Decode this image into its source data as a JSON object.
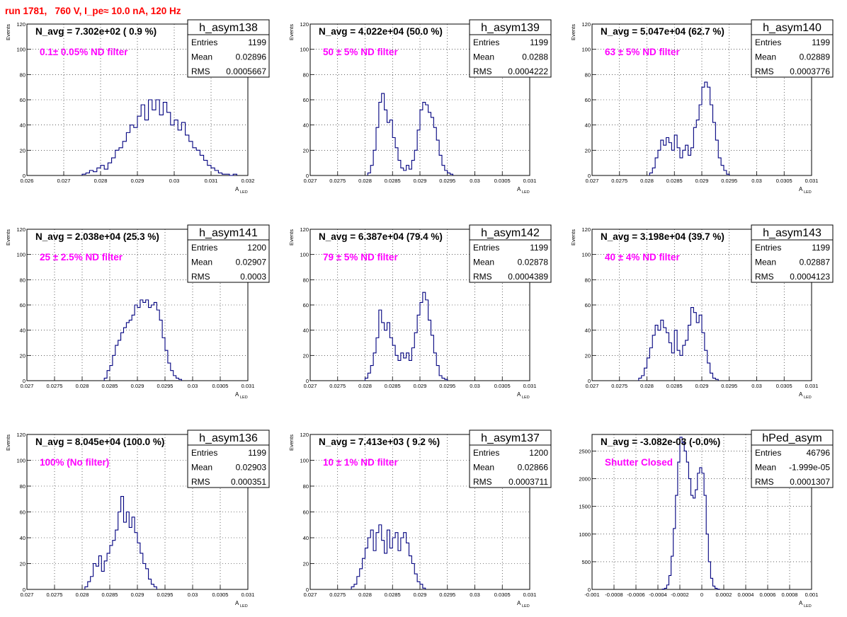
{
  "page": {
    "title": "run 1781,   760 V, I_pe≈ 10.0 nA, 120 Hz"
  },
  "labels": {
    "stats_entries": "Entries",
    "stats_mean": "Mean",
    "stats_rms": "RMS"
  },
  "colors": {
    "histogram": "#00007f",
    "annotation": "#ff00ff",
    "title": "#ff0000",
    "grid": "#000000"
  },
  "chart_data": [
    {
      "type": "histogram",
      "name": "h_asym138",
      "navg_text": "N_avg = 7.302e+02 ( 0.9 %)",
      "filter_text": "0.1± 0.05% ND filter",
      "stats": {
        "entries": "1199",
        "mean": "0.02896",
        "rms": "0.0005667"
      },
      "xlabel": "A",
      "xlabel_sub": "LED",
      "ylabel": "Events",
      "xlim": [
        0.026,
        0.032
      ],
      "ylim": [
        0,
        120
      ],
      "grid": true,
      "xticks": [
        0.026,
        0.027,
        0.028,
        0.029,
        0.03,
        0.031,
        0.032
      ],
      "xtick_labels": [
        "0.026",
        "0.027",
        "0.028",
        "0.029",
        "0.03",
        "0.031",
        "0.032"
      ],
      "yticks": [
        0,
        20,
        40,
        60,
        80,
        100,
        120
      ],
      "ytick_labels": [
        "0",
        "20",
        "40",
        "60",
        "80",
        "100",
        "120"
      ],
      "bins": {
        "start": 0.0275,
        "width": 0.0001,
        "counts": [
          1,
          2,
          4,
          3,
          6,
          8,
          5,
          10,
          14,
          20,
          22,
          27,
          34,
          40,
          38,
          47,
          56,
          44,
          60,
          52,
          60,
          48,
          58,
          50,
          40,
          44,
          36,
          42,
          32,
          27,
          22,
          20,
          16,
          12,
          8,
          6,
          4,
          2,
          1,
          1,
          0,
          1
        ]
      }
    },
    {
      "type": "histogram",
      "name": "h_asym139",
      "navg_text": "N_avg = 4.022e+04 (50.0 %)",
      "filter_text": "50 ± 5% ND filter",
      "stats": {
        "entries": "1199",
        "mean": "0.0288",
        "rms": "0.0004222"
      },
      "xlabel": "A",
      "xlabel_sub": "LED",
      "ylabel": "Events",
      "xlim": [
        0.027,
        0.031
      ],
      "ylim": [
        0,
        120
      ],
      "grid": true,
      "xticks": [
        0.027,
        0.0275,
        0.028,
        0.0285,
        0.029,
        0.0295,
        0.03,
        0.0305,
        0.031
      ],
      "xtick_labels": [
        "0.027",
        "0.0275",
        "0.028",
        "0.0285",
        "0.029",
        "0.0295",
        "0.03",
        "0.0305",
        "0.031"
      ],
      "yticks": [
        0,
        20,
        40,
        60,
        80,
        100,
        120
      ],
      "ytick_labels": [
        "0",
        "20",
        "40",
        "60",
        "80",
        "100",
        "120"
      ],
      "bins": {
        "start": 0.02805,
        "width": 5e-05,
        "counts": [
          2,
          8,
          20,
          38,
          58,
          65,
          52,
          42,
          44,
          30,
          22,
          12,
          6,
          4,
          8,
          5,
          12,
          20,
          36,
          52,
          58,
          56,
          50,
          46,
          38,
          28,
          16,
          8,
          4,
          2,
          1
        ]
      }
    },
    {
      "type": "histogram",
      "name": "h_asym140",
      "navg_text": "N_avg = 5.047e+04 (62.7 %)",
      "filter_text": "63 ± 5% ND filter",
      "stats": {
        "entries": "1199",
        "mean": "0.02889",
        "rms": "0.0003776"
      },
      "xlabel": "A",
      "xlabel_sub": "LED",
      "ylabel": "Events",
      "xlim": [
        0.027,
        0.031
      ],
      "ylim": [
        0,
        120
      ],
      "grid": true,
      "xticks": [
        0.027,
        0.0275,
        0.028,
        0.0285,
        0.029,
        0.0295,
        0.03,
        0.0305,
        0.031
      ],
      "xtick_labels": [
        "0.027",
        "0.0275",
        "0.028",
        "0.0285",
        "0.029",
        "0.0295",
        "0.03",
        "0.0305",
        "0.031"
      ],
      "yticks": [
        0,
        20,
        40,
        60,
        80,
        100,
        120
      ],
      "ytick_labels": [
        "0",
        "20",
        "40",
        "60",
        "80",
        "100",
        "120"
      ],
      "bins": {
        "start": 0.02805,
        "width": 5e-05,
        "counts": [
          2,
          6,
          14,
          20,
          28,
          24,
          30,
          26,
          20,
          32,
          22,
          14,
          20,
          24,
          16,
          22,
          38,
          44,
          56,
          70,
          74,
          70,
          56,
          42,
          28,
          14,
          8,
          4,
          1
        ]
      }
    },
    {
      "type": "histogram",
      "name": "h_asym141",
      "navg_text": "N_avg = 2.038e+04 (25.3 %)",
      "filter_text": "25 ± 2.5% ND filter",
      "stats": {
        "entries": "1200",
        "mean": "0.02907",
        "rms": "0.0003"
      },
      "xlabel": "A",
      "xlabel_sub": "LED",
      "ylabel": "Events",
      "xlim": [
        0.027,
        0.031
      ],
      "ylim": [
        0,
        120
      ],
      "grid": true,
      "xticks": [
        0.027,
        0.0275,
        0.028,
        0.0285,
        0.029,
        0.0295,
        0.03,
        0.0305,
        0.031
      ],
      "xtick_labels": [
        "0.027",
        "0.0275",
        "0.028",
        "0.0285",
        "0.029",
        "0.0295",
        "0.03",
        "0.0305",
        "0.031"
      ],
      "yticks": [
        0,
        20,
        40,
        60,
        80,
        100,
        120
      ],
      "ytick_labels": [
        "0",
        "20",
        "40",
        "60",
        "80",
        "100",
        "120"
      ],
      "bins": {
        "start": 0.0284,
        "width": 5e-05,
        "counts": [
          2,
          8,
          12,
          20,
          28,
          32,
          38,
          42,
          46,
          48,
          52,
          60,
          58,
          64,
          62,
          64,
          58,
          60,
          62,
          56,
          48,
          34,
          24,
          14,
          8,
          4,
          2,
          1
        ]
      }
    },
    {
      "type": "histogram",
      "name": "h_asym142",
      "navg_text": "N_avg = 6.387e+04 (79.4 %)",
      "filter_text": "79 ± 5% ND filter",
      "stats": {
        "entries": "1199",
        "mean": "0.02878",
        "rms": "0.0004389"
      },
      "xlabel": "A",
      "xlabel_sub": "LED",
      "ylabel": "Events",
      "xlim": [
        0.027,
        0.031
      ],
      "ylim": [
        0,
        120
      ],
      "grid": true,
      "xticks": [
        0.027,
        0.0275,
        0.028,
        0.0285,
        0.029,
        0.0295,
        0.03,
        0.0305,
        0.031
      ],
      "xtick_labels": [
        "0.027",
        "0.0275",
        "0.028",
        "0.0285",
        "0.029",
        "0.0295",
        "0.03",
        "0.0305",
        "0.031"
      ],
      "yticks": [
        0,
        20,
        40,
        60,
        80,
        100,
        120
      ],
      "ytick_labels": [
        "0",
        "20",
        "40",
        "60",
        "80",
        "100",
        "120"
      ],
      "bins": {
        "start": 0.028,
        "width": 5e-05,
        "counts": [
          2,
          6,
          12,
          22,
          34,
          56,
          46,
          40,
          46,
          34,
          28,
          20,
          16,
          22,
          18,
          22,
          16,
          26,
          38,
          52,
          62,
          70,
          64,
          48,
          36,
          22,
          12,
          4,
          2,
          1
        ]
      }
    },
    {
      "type": "histogram",
      "name": "h_asym143",
      "navg_text": "N_avg = 3.198e+04 (39.7 %)",
      "filter_text": "40 ± 4% ND filter",
      "stats": {
        "entries": "1199",
        "mean": "0.02887",
        "rms": "0.0004123"
      },
      "xlabel": "A",
      "xlabel_sub": "LED",
      "ylabel": "Events",
      "xlim": [
        0.027,
        0.031
      ],
      "ylim": [
        0,
        120
      ],
      "grid": true,
      "xticks": [
        0.027,
        0.0275,
        0.028,
        0.0285,
        0.029,
        0.0295,
        0.03,
        0.0305,
        0.031
      ],
      "xtick_labels": [
        "0.027",
        "0.0275",
        "0.028",
        "0.0285",
        "0.029",
        "0.0295",
        "0.03",
        "0.0305",
        "0.031"
      ],
      "yticks": [
        0,
        20,
        40,
        60,
        80,
        100,
        120
      ],
      "ytick_labels": [
        "0",
        "20",
        "40",
        "60",
        "80",
        "100",
        "120"
      ],
      "bins": {
        "start": 0.02785,
        "width": 5e-05,
        "counts": [
          2,
          4,
          10,
          18,
          26,
          36,
          44,
          40,
          48,
          42,
          38,
          30,
          22,
          40,
          24,
          20,
          28,
          32,
          44,
          58,
          54,
          46,
          52,
          38,
          24,
          14,
          6,
          2,
          1
        ]
      }
    },
    {
      "type": "histogram",
      "name": "h_asym136",
      "navg_text": "N_avg = 8.045e+04 (100.0 %)",
      "filter_text": "100% (No filter)",
      "stats": {
        "entries": "1199",
        "mean": "0.02903",
        "rms": "0.000351"
      },
      "xlabel": "A",
      "xlabel_sub": "LED",
      "ylabel": "Events",
      "xlim": [
        0.027,
        0.031
      ],
      "ylim": [
        0,
        120
      ],
      "grid": true,
      "xticks": [
        0.027,
        0.0275,
        0.028,
        0.0285,
        0.029,
        0.0295,
        0.03,
        0.0305,
        0.031
      ],
      "xtick_labels": [
        "0.027",
        "0.0275",
        "0.028",
        "0.0285",
        "0.029",
        "0.0295",
        "0.03",
        "0.0305",
        "0.031"
      ],
      "yticks": [
        0,
        20,
        40,
        60,
        80,
        100,
        120
      ],
      "ytick_labels": [
        "0",
        "20",
        "40",
        "60",
        "80",
        "100",
        "120"
      ],
      "bins": {
        "start": 0.02805,
        "width": 5e-05,
        "counts": [
          2,
          6,
          10,
          20,
          18,
          26,
          14,
          22,
          28,
          34,
          38,
          46,
          60,
          72,
          52,
          60,
          48,
          56,
          44,
          36,
          28,
          20,
          16,
          8,
          4,
          2
        ]
      }
    },
    {
      "type": "histogram",
      "name": "h_asym137",
      "navg_text": "N_avg = 7.413e+03 ( 9.2 %)",
      "filter_text": "10 ± 1% ND filter",
      "stats": {
        "entries": "1200",
        "mean": "0.02866",
        "rms": "0.0003711"
      },
      "xlabel": "A",
      "xlabel_sub": "LED",
      "ylabel": "Events",
      "xlim": [
        0.027,
        0.031
      ],
      "ylim": [
        0,
        120
      ],
      "grid": true,
      "xticks": [
        0.027,
        0.0275,
        0.028,
        0.0285,
        0.029,
        0.0295,
        0.03,
        0.0305,
        0.031
      ],
      "xtick_labels": [
        "0.027",
        "0.0275",
        "0.028",
        "0.0285",
        "0.029",
        "0.0295",
        "0.03",
        "0.0305",
        "0.031"
      ],
      "yticks": [
        0,
        20,
        40,
        60,
        80,
        100,
        120
      ],
      "ytick_labels": [
        "0",
        "20",
        "40",
        "60",
        "80",
        "100",
        "120"
      ],
      "bins": {
        "start": 0.02775,
        "width": 5e-05,
        "counts": [
          2,
          4,
          10,
          16,
          24,
          32,
          40,
          46,
          30,
          44,
          50,
          38,
          28,
          46,
          32,
          40,
          44,
          30,
          40,
          44,
          36,
          26,
          20,
          12,
          6,
          4,
          1
        ]
      }
    },
    {
      "type": "histogram",
      "name": "hPed_asym",
      "navg_text": "N_avg = -3.082e-03 (-0.0%)",
      "filter_text": "Shutter Closed",
      "stats": {
        "entries": "46796",
        "mean": "-1.999e-05",
        "rms": "0.0001307"
      },
      "xlabel": "A",
      "xlabel_sub": "LED",
      "ylabel": "",
      "xlim": [
        -0.001,
        0.001
      ],
      "ylim": [
        0,
        2800
      ],
      "grid": true,
      "xticks": [
        -0.001,
        -0.0008,
        -0.0006,
        -0.0004,
        -0.0002,
        0,
        0.0002,
        0.0004,
        0.0006,
        0.0008,
        0.001
      ],
      "xtick_labels": [
        "-0.001",
        "-0.0008",
        "-0.0006",
        "-0.0004",
        "-0.0002",
        "0",
        "0.0002",
        "0.0004",
        "0.0006",
        "0.0008",
        "0.001"
      ],
      "yticks": [
        0,
        500,
        1000,
        1500,
        2000,
        2500
      ],
      "ytick_labels": [
        "0",
        "500",
        "1000",
        "1500",
        "2000",
        "2500"
      ],
      "bins": {
        "start": -0.00036,
        "width": 2e-05,
        "counts": [
          5,
          20,
          80,
          250,
          600,
          1100,
          1700,
          2300,
          2750,
          2650,
          2500,
          2300,
          2000,
          1700,
          1650,
          1800,
          2100,
          2200,
          2100,
          1700,
          1000,
          500,
          200,
          60,
          20,
          5
        ]
      }
    }
  ]
}
